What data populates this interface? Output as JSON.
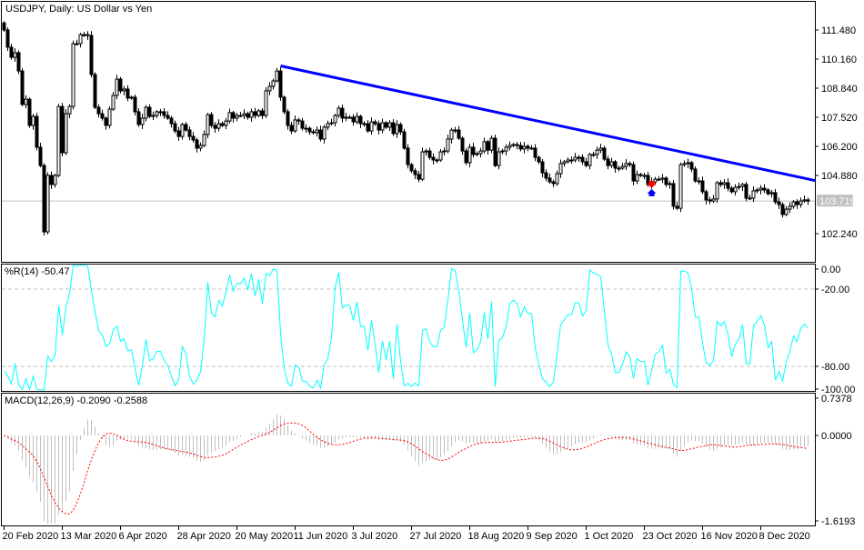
{
  "chart_data": [
    {
      "type": "candlestick",
      "title": "USDJPY, Daily:  US Dollar vs Yen",
      "first_open": 111.8,
      "close": [
        111.48,
        110.7,
        110.24,
        110.45,
        109.62,
        108.1,
        108.34,
        107.15,
        107.56,
        106.16,
        105.33,
        102.32,
        104.88,
        104.47,
        104.88,
        108.01,
        105.91,
        107.68,
        108.01,
        110.86,
        110.86,
        111.27,
        111.27,
        111.23,
        109.46,
        107.97,
        107.68,
        107.48,
        107.15,
        107.89,
        108.51,
        109.25,
        108.72,
        108.8,
        108.39,
        108.43,
        107.77,
        107.19,
        107.48,
        107.97,
        107.56,
        107.6,
        107.77,
        107.77,
        107.6,
        107.48,
        107.23,
        106.9,
        106.65,
        107.19,
        106.94,
        106.65,
        106.49,
        106.12,
        106.24,
        106.74,
        107.64,
        107.15,
        107.02,
        107.23,
        107.15,
        107.35,
        107.73,
        107.48,
        107.6,
        107.6,
        107.68,
        107.52,
        107.77,
        107.6,
        107.81,
        107.6,
        108.72,
        108.92,
        109.17,
        109.62,
        108.43,
        107.77,
        107.15,
        106.9,
        107.4,
        107.35,
        107.02,
        107.02,
        106.86,
        106.82,
        106.94,
        106.53,
        107.07,
        107.23,
        107.27,
        107.6,
        107.93,
        107.48,
        107.52,
        107.52,
        107.31,
        107.56,
        107.23,
        107.23,
        106.9,
        107.31,
        107.23,
        106.94,
        107.27,
        107.07,
        107.27,
        106.78,
        107.19,
        106.86,
        106.12,
        105.37,
        105.09,
        104.92,
        104.71,
        105.95,
        105.99,
        105.7,
        105.58,
        105.58,
        105.95,
        105.99,
        106.53,
        106.94,
        106.94,
        106.57,
        105.99,
        105.46,
        106.16,
        105.83,
        105.87,
        105.99,
        106.41,
        106.03,
        106.57,
        105.33,
        105.95,
        105.99,
        106.16,
        106.24,
        106.28,
        106.24,
        106.08,
        106.2,
        106.12,
        106.12,
        105.7,
        105.5,
        105.0,
        104.76,
        104.59,
        104.51,
        104.96,
        105.42,
        105.5,
        105.58,
        105.58,
        105.7,
        105.7,
        105.5,
        105.33,
        105.83,
        105.83,
        106.03,
        106.12,
        105.62,
        105.33,
        105.5,
        105.21,
        105.21,
        105.29,
        105.42,
        105.37,
        104.63,
        104.92,
        104.88,
        104.88,
        104.47,
        104.59,
        104.71,
        104.71,
        104.76,
        104.47,
        104.51,
        103.48,
        103.39,
        105.37,
        105.42,
        105.46,
        105.17,
        104.63,
        104.63,
        104.14,
        103.77,
        103.72,
        103.81,
        104.55,
        104.47,
        104.55,
        104.3,
        104.14,
        104.34,
        104.38,
        104.47,
        103.85,
        103.85,
        104.18,
        104.22,
        104.3,
        104.22,
        104.05,
        104.1,
        103.68,
        103.56,
        103.11,
        103.35,
        103.48,
        103.68,
        103.56,
        103.72,
        103.77,
        103.72
      ],
      "x_tick_labels": [
        {
          "bar": 0,
          "label": "20 Feb 2020"
        },
        {
          "bar": 16,
          "label": "13 Mar 2020"
        },
        {
          "bar": 32,
          "label": "6 Apr 2020"
        },
        {
          "bar": 48,
          "label": "28 Apr 2020"
        },
        {
          "bar": 64,
          "label": "20 May 2020"
        },
        {
          "bar": 80,
          "label": "11 Jun 2020"
        },
        {
          "bar": 96,
          "label": "3 Jul 2020"
        },
        {
          "bar": 112,
          "label": "27 Jul 2020"
        },
        {
          "bar": 128,
          "label": "18 Aug 2020"
        },
        {
          "bar": 144,
          "label": "9 Sep 2020"
        },
        {
          "bar": 160,
          "label": "1 Oct 2020"
        },
        {
          "bar": 176,
          "label": "23 Oct 2020"
        },
        {
          "bar": 192,
          "label": "16 Nov 2020"
        },
        {
          "bar": 208,
          "label": "8 Dec 2020"
        }
      ],
      "y_ticks": [
        "111.480",
        "110.160",
        "108.840",
        "107.520",
        "106.200",
        "104.880",
        "102.240"
      ],
      "current_price": "103.719",
      "trendline": {
        "color": "#0000ff",
        "points": [
          {
            "bar": 76,
            "price": 109.85
          },
          {
            "bar": 223,
            "price": 104.65
          }
        ]
      },
      "markers": [
        {
          "bar": 178,
          "type": "sell-arrow",
          "color": "#ff0000",
          "price": 104.47
        },
        {
          "bar": 178,
          "type": "buy-arrow",
          "color": "#0000ff",
          "price": 104.1
        }
      ],
      "colors": {
        "bull_body": "#ffffff",
        "bear_body": "#000000",
        "candle_outline": "#000000",
        "price_line": "#c0c0c0"
      }
    },
    {
      "type": "line",
      "title": "%R(14) -50.47",
      "ylim": [
        -100,
        0
      ],
      "levels": [
        -20,
        -80
      ],
      "y_ticks": [
        "0.00",
        "-20.00",
        "-80.00",
        "-100.00"
      ],
      "color": "#00ffff"
    },
    {
      "type": "bar",
      "title": "MACD(12,26,9) -0.2090 -0.2588",
      "ylim": [
        -1.6193,
        0.7378
      ],
      "y_ticks": [
        "0.7378",
        "0.0000",
        "-1.6193"
      ],
      "histogram_color": "#c0c0c0",
      "signal_color": "#ff0000"
    }
  ]
}
